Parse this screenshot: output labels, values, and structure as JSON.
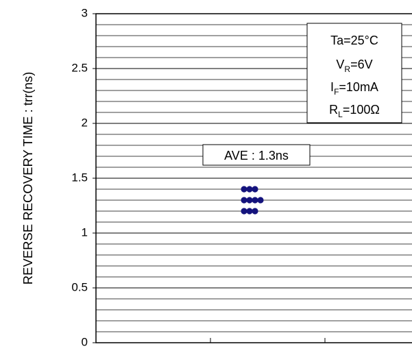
{
  "chart_data": {
    "type": "scatter",
    "ylabel": "REVERSE RECOVERY TIME : trr(ns)",
    "xlabel": "",
    "ylim": [
      0,
      3
    ],
    "yticks": [
      0,
      0.5,
      1,
      1.5,
      2,
      2.5,
      3
    ],
    "ytick_labels": [
      "0",
      "0.5",
      "1",
      "1.5",
      "2",
      "2.5",
      "3"
    ],
    "minor_grid_step": 0.1,
    "grid": true,
    "series": [
      {
        "color": "#14137d",
        "points": [
          {
            "x": -2,
            "y": 1.4
          },
          {
            "x": -1,
            "y": 1.4
          },
          {
            "x": 0,
            "y": 1.4
          },
          {
            "x": -2,
            "y": 1.3
          },
          {
            "x": -1,
            "y": 1.3
          },
          {
            "x": 0,
            "y": 1.3
          },
          {
            "x": 1,
            "y": 1.3
          },
          {
            "x": -2,
            "y": 1.2
          },
          {
            "x": -1,
            "y": 1.2
          },
          {
            "x": 0,
            "y": 1.2
          }
        ]
      }
    ],
    "annotations": {
      "average": "AVE : 1.3ns",
      "conditions": {
        "ta": {
          "main": "Ta=25°C",
          "sub": "",
          "rest": ""
        },
        "vr": {
          "main": "V",
          "sub": "R",
          "rest": "=6V"
        },
        "if": {
          "main": "I",
          "sub": "F",
          "rest": "=10mA"
        },
        "rl": {
          "main": "R",
          "sub": "L",
          "rest": "=100Ω"
        }
      }
    }
  }
}
